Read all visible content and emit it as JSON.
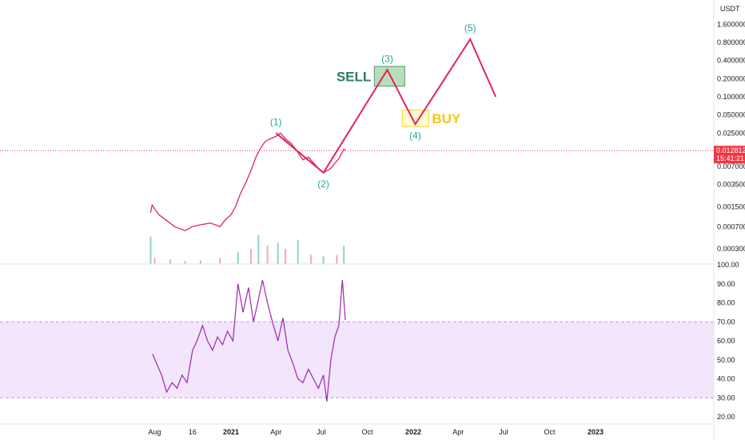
{
  "chart_data": [
    {
      "type": "line",
      "panel": "price",
      "scale": "log",
      "y_axis_unit": "USDT",
      "y_ticks": [
        0.0003,
        0.0007,
        0.0015,
        0.0035,
        0.007,
        0.025,
        0.05,
        0.1,
        0.2,
        0.4,
        0.8,
        1.6
      ],
      "y_tick_labels": [
        "0.000300",
        "0.000700",
        "0.001500",
        "0.003500",
        "0.007000",
        "0.025000",
        "0.050000",
        "0.100000",
        "0.200000",
        "0.400000",
        "0.800000",
        "1.600000"
      ],
      "x_tick_labels": [
        "Aug",
        "16",
        "2021",
        "Apr",
        "Jul",
        "Oct",
        "2022",
        "Apr",
        "Jul",
        "Oct",
        "2023"
      ],
      "x_tick_dates": [
        "2020-08-01",
        "2020-10-16",
        "2021-01-01",
        "2021-04-01",
        "2021-07-01",
        "2021-10-01",
        "2022-01-01",
        "2022-04-01",
        "2022-07-01",
        "2022-10-01",
        "2023-01-01"
      ],
      "bold_x_ticks": [
        "2021",
        "2022",
        "2023"
      ],
      "current_price": {
        "value": 0.012812,
        "label": "0.012812",
        "countdown": "15:41:21",
        "color": "#f23645"
      },
      "price_series": {
        "name": "",
        "color": "#e0245e",
        "points": [
          [
            "2020-07-24",
            0.0012
          ],
          [
            "2020-07-27",
            0.0016
          ],
          [
            "2020-08-03",
            0.0013
          ],
          [
            "2020-08-10",
            0.0011
          ],
          [
            "2020-08-20",
            0.00095
          ],
          [
            "2020-09-01",
            0.0008
          ],
          [
            "2020-09-10",
            0.0007
          ],
          [
            "2020-09-20",
            0.00065
          ],
          [
            "2020-10-01",
            0.0006
          ],
          [
            "2020-10-16",
            0.0007
          ],
          [
            "2020-11-01",
            0.00075
          ],
          [
            "2020-11-20",
            0.0008
          ],
          [
            "2020-12-01",
            0.00075
          ],
          [
            "2020-12-10",
            0.0007
          ],
          [
            "2020-12-20",
            0.0009
          ],
          [
            "2021-01-01",
            0.0011
          ],
          [
            "2021-01-10",
            0.0015
          ],
          [
            "2021-01-20",
            0.0025
          ],
          [
            "2021-02-01",
            0.004
          ],
          [
            "2021-02-10",
            0.006
          ],
          [
            "2021-02-20",
            0.01
          ],
          [
            "2021-03-01",
            0.014
          ],
          [
            "2021-03-10",
            0.018
          ],
          [
            "2021-03-20",
            0.02
          ],
          [
            "2021-04-01",
            0.022
          ],
          [
            "2021-04-10",
            0.025
          ],
          [
            "2021-04-20",
            0.02
          ],
          [
            "2021-05-01",
            0.017
          ],
          [
            "2021-05-12",
            0.013
          ],
          [
            "2021-05-25",
            0.009
          ],
          [
            "2021-06-05",
            0.01
          ],
          [
            "2021-06-15",
            0.008
          ],
          [
            "2021-06-25",
            0.0065
          ],
          [
            "2021-07-05",
            0.0055
          ],
          [
            "2021-07-20",
            0.0065
          ],
          [
            "2021-08-05",
            0.0095
          ],
          [
            "2021-08-15",
            0.0135
          ],
          [
            "2021-08-18",
            0.0128
          ]
        ]
      },
      "elliott_projection": {
        "color": "#e0245e",
        "points": [
          {
            "date": "2021-04-01",
            "value": 0.025,
            "label": "(1)"
          },
          {
            "date": "2021-07-05",
            "value": 0.0055,
            "label": "(2)"
          },
          {
            "date": "2021-11-10",
            "value": 0.28,
            "label": "(3)"
          },
          {
            "date": "2022-01-05",
            "value": 0.035,
            "label": "(4)"
          },
          {
            "date": "2022-04-25",
            "value": 0.9,
            "label": "(5)"
          },
          {
            "date": "2022-06-15",
            "value": 0.1,
            "label": ""
          }
        ]
      },
      "zones": [
        {
          "label": "SELL",
          "color": "#2e7d5b",
          "fill": "#a5d6a7",
          "date_from": "2021-10-15",
          "date_to": "2021-12-15",
          "value_from": 0.15,
          "value_to": 0.32,
          "text_side": "left"
        },
        {
          "label": "BUY",
          "color": "#f5c518",
          "fill": "#fff9c4",
          "date_from": "2021-12-10",
          "date_to": "2022-02-01",
          "value_from": 0.032,
          "value_to": 0.06,
          "text_side": "right"
        }
      ],
      "volume_series": {
        "color_up": "#26a69a",
        "color_down": "#ef5350",
        "points": [
          [
            "2020-07-24",
            0.9
          ],
          [
            "2020-08-01",
            0.2
          ],
          [
            "2020-09-01",
            0.15
          ],
          [
            "2020-10-01",
            0.1
          ],
          [
            "2020-11-01",
            0.12
          ],
          [
            "2020-12-10",
            0.2
          ],
          [
            "2021-01-15",
            0.4
          ],
          [
            "2021-02-10",
            0.5
          ],
          [
            "2021-02-25",
            0.95
          ],
          [
            "2021-03-15",
            0.6
          ],
          [
            "2021-04-05",
            0.7
          ],
          [
            "2021-04-20",
            0.5
          ],
          [
            "2021-05-15",
            0.8
          ],
          [
            "2021-06-10",
            0.3
          ],
          [
            "2021-07-05",
            0.25
          ],
          [
            "2021-08-01",
            0.3
          ],
          [
            "2021-08-15",
            0.6
          ]
        ]
      }
    },
    {
      "type": "line",
      "panel": "rsi",
      "y_ticks": [
        20,
        30,
        40,
        50,
        60,
        70,
        80,
        90,
        100
      ],
      "y_tick_labels": [
        "20.00",
        "30.00",
        "40.00",
        "50.00",
        "60.00",
        "70.00",
        "80.00",
        "90.00",
        "100.00"
      ],
      "ylim": [
        18,
        100
      ],
      "band": {
        "from": 30,
        "to": 70,
        "fill": "#f3e5fc",
        "line_color": "#b39ddb"
      },
      "series": {
        "name": "",
        "color": "#9c27b0",
        "points": [
          [
            "2020-07-28",
            53
          ],
          [
            "2020-08-05",
            48
          ],
          [
            "2020-08-15",
            42
          ],
          [
            "2020-08-25",
            33
          ],
          [
            "2020-09-05",
            38
          ],
          [
            "2020-09-15",
            35
          ],
          [
            "2020-09-25",
            42
          ],
          [
            "2020-10-05",
            38
          ],
          [
            "2020-10-16",
            55
          ],
          [
            "2020-10-25",
            60
          ],
          [
            "2020-11-05",
            68
          ],
          [
            "2020-11-15",
            60
          ],
          [
            "2020-11-25",
            55
          ],
          [
            "2020-12-05",
            62
          ],
          [
            "2020-12-15",
            58
          ],
          [
            "2020-12-25",
            65
          ],
          [
            "2021-01-05",
            60
          ],
          [
            "2021-01-15",
            90
          ],
          [
            "2021-01-25",
            75
          ],
          [
            "2021-02-05",
            88
          ],
          [
            "2021-02-15",
            70
          ],
          [
            "2021-02-25",
            82
          ],
          [
            "2021-03-05",
            92
          ],
          [
            "2021-03-15",
            80
          ],
          [
            "2021-03-25",
            70
          ],
          [
            "2021-04-05",
            60
          ],
          [
            "2021-04-15",
            72
          ],
          [
            "2021-04-25",
            55
          ],
          [
            "2021-05-05",
            48
          ],
          [
            "2021-05-15",
            40
          ],
          [
            "2021-05-25",
            38
          ],
          [
            "2021-06-05",
            45
          ],
          [
            "2021-06-15",
            40
          ],
          [
            "2021-06-25",
            35
          ],
          [
            "2021-07-05",
            42
          ],
          [
            "2021-07-12",
            28
          ],
          [
            "2021-07-20",
            50
          ],
          [
            "2021-07-28",
            62
          ],
          [
            "2021-08-05",
            68
          ],
          [
            "2021-08-12",
            92
          ],
          [
            "2021-08-18",
            71
          ]
        ]
      },
      "x_tick_labels": [
        "Aug",
        "16",
        "2021",
        "Apr",
        "Jul",
        "Oct",
        "2022",
        "Apr",
        "Jul",
        "Oct",
        "2023"
      ]
    }
  ]
}
